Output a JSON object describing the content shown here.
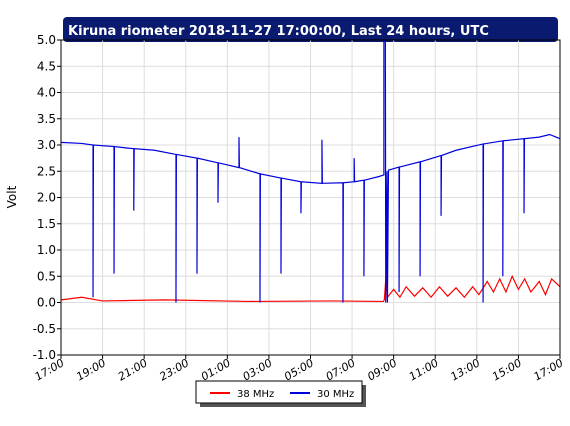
{
  "chart_data": {
    "type": "line",
    "title": "Kiruna riometer 2018-11-27 17:00:00, Last 24 hours, UTC",
    "y_label": "Volt",
    "xlim": [
      0,
      24
    ],
    "ylim": [
      -1,
      5
    ],
    "grid": true,
    "legend": "bottom",
    "xticks": [
      {
        "value": 0,
        "label": "17:00"
      },
      {
        "value": 2,
        "label": "19:00"
      },
      {
        "value": 4,
        "label": "21:00"
      },
      {
        "value": 6,
        "label": "23:00"
      },
      {
        "value": 8,
        "label": "01:00"
      },
      {
        "value": 10,
        "label": "03:00"
      },
      {
        "value": 12,
        "label": "05:00"
      },
      {
        "value": 14,
        "label": "07:00"
      },
      {
        "value": 16,
        "label": "09:00"
      },
      {
        "value": 18,
        "label": "11:00"
      },
      {
        "value": 20,
        "label": "13:00"
      },
      {
        "value": 22,
        "label": "15:00"
      },
      {
        "value": 24,
        "label": "17:00"
      }
    ],
    "yticks": [
      {
        "value": -1,
        "label": "-1.0"
      },
      {
        "value": -0.5,
        "label": "-0.5"
      },
      {
        "value": 0,
        "label": "0.0"
      },
      {
        "value": 0.5,
        "label": "0.5"
      },
      {
        "value": 1,
        "label": "1.0"
      },
      {
        "value": 1.5,
        "label": "1.5"
      },
      {
        "value": 2,
        "label": "2.0"
      },
      {
        "value": 2.5,
        "label": "2.5"
      },
      {
        "value": 3,
        "label": "3.0"
      },
      {
        "value": 3.5,
        "label": "3.5"
      },
      {
        "value": 4,
        "label": "4.0"
      },
      {
        "value": 4.5,
        "label": "4.5"
      },
      {
        "value": 5,
        "label": "5.0"
      }
    ],
    "series": [
      {
        "name": "38 MHz",
        "color": "#ff0000",
        "x": [
          0,
          1,
          2,
          5,
          9,
          13,
          15.5,
          15.55,
          15.65,
          15.7,
          16,
          16.3,
          16.6,
          17,
          17.4,
          17.8,
          18.2,
          18.6,
          19,
          19.4,
          19.8,
          20.1,
          20.5,
          20.8,
          21.1,
          21.4,
          21.7,
          22,
          22.3,
          22.6,
          23,
          23.3,
          23.6,
          24
        ],
        "values": [
          0.05,
          0.1,
          0.03,
          0.05,
          0.02,
          0.03,
          0.02,
          0.05,
          0.6,
          0.1,
          0.25,
          0.1,
          0.3,
          0.12,
          0.28,
          0.1,
          0.3,
          0.12,
          0.28,
          0.1,
          0.3,
          0.15,
          0.4,
          0.2,
          0.45,
          0.2,
          0.5,
          0.25,
          0.45,
          0.2,
          0.4,
          0.15,
          0.45,
          0.3
        ]
      },
      {
        "name": "30 MHz",
        "color": "#0000dd",
        "x": [
          0,
          1,
          1.54,
          1.54,
          1.56,
          2.55,
          2.55,
          2.57,
          3,
          3.5,
          3.5,
          3.52,
          4.5,
          5.53,
          5.53,
          5.55,
          6.54,
          6.54,
          6.56,
          7.55,
          7.55,
          7.57,
          8.56,
          8.56,
          8.58,
          9.57,
          9.57,
          9.59,
          10.58,
          10.58,
          10.6,
          11.54,
          11.54,
          11.56,
          12.55,
          12.55,
          12.57,
          13.56,
          13.56,
          13.58,
          14.1,
          14.1,
          14.12,
          14.57,
          14.57,
          14.59,
          15.3,
          15.53,
          15.53,
          15.6,
          15.62,
          15.68,
          15.7,
          15.75,
          16.26,
          16.26,
          16.28,
          17.27,
          17.27,
          17.29,
          18.28,
          18.28,
          18.3,
          19,
          20.3,
          20.3,
          20.32,
          21.25,
          21.25,
          21.27,
          22.27,
          22.27,
          22.29,
          23,
          23.5,
          24
        ],
        "values": [
          3.05,
          3.03,
          3.0,
          0.1,
          3.0,
          2.97,
          0.55,
          2.97,
          2.95,
          2.93,
          1.75,
          2.93,
          2.9,
          2.82,
          0.0,
          2.82,
          2.75,
          0.55,
          2.75,
          2.66,
          1.9,
          2.66,
          2.57,
          3.15,
          2.57,
          2.45,
          0.0,
          2.45,
          2.37,
          0.55,
          2.37,
          2.3,
          1.7,
          2.3,
          2.27,
          3.1,
          2.27,
          2.28,
          0.0,
          2.28,
          2.3,
          2.75,
          2.3,
          2.33,
          0.5,
          2.33,
          2.4,
          2.43,
          5.0,
          5.0,
          0.0,
          2.5,
          0.0,
          2.52,
          2.58,
          0.2,
          2.58,
          2.68,
          0.5,
          2.68,
          2.8,
          1.65,
          2.8,
          2.9,
          3.02,
          0.0,
          3.02,
          3.08,
          0.5,
          3.08,
          3.12,
          1.7,
          3.12,
          3.15,
          3.2,
          3.12
        ]
      }
    ]
  }
}
